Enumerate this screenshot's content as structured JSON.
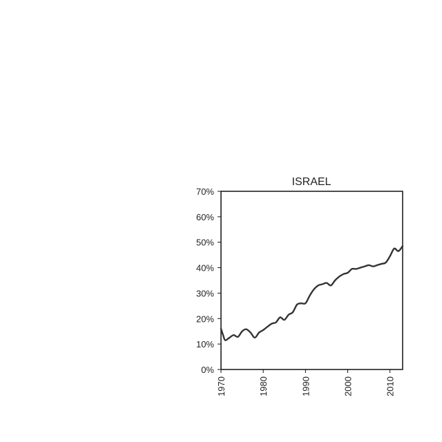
{
  "chart_data": {
    "type": "line",
    "title": "ISRAEL",
    "xlabel": "",
    "ylabel": "",
    "xlim": [
      1970,
      2013
    ],
    "ylim": [
      0,
      70
    ],
    "y_ticks": [
      0,
      10,
      20,
      30,
      40,
      50,
      60,
      70
    ],
    "y_tick_labels": [
      "0%",
      "10%",
      "20%",
      "30%",
      "40%",
      "50%",
      "60%",
      "70%"
    ],
    "x_ticks": [
      1970,
      1980,
      1990,
      2000,
      2010
    ],
    "x_tick_labels": [
      "1970",
      "1980",
      "1990",
      "2000",
      "2010"
    ],
    "grid": false,
    "series": [
      {
        "x": [
          1970,
          1970.5,
          1971,
          1972,
          1973,
          1974,
          1975,
          1976,
          1977,
          1978,
          1979,
          1980,
          1981,
          1982,
          1983,
          1984,
          1985,
          1986,
          1987,
          1988,
          1989,
          1990,
          1991,
          1992,
          1993,
          1994,
          1995,
          1996,
          1997,
          1998,
          1999,
          2000,
          2001,
          2002,
          2003,
          2004,
          2005,
          2006,
          2007,
          2008,
          2009,
          2010,
          2011,
          2012,
          2013
        ],
        "y": [
          16.0,
          13.5,
          11.5,
          12.5,
          13.5,
          12.8,
          15.0,
          15.8,
          14.5,
          12.5,
          14.5,
          15.5,
          16.8,
          18.0,
          18.5,
          20.5,
          19.5,
          21.5,
          22.5,
          25.5,
          26.0,
          26.0,
          29.0,
          31.5,
          33.0,
          33.5,
          34.0,
          33.0,
          35.0,
          36.5,
          37.5,
          38.0,
          39.5,
          39.5,
          40.0,
          40.5,
          41.0,
          40.5,
          41.0,
          41.5,
          42.0,
          44.5,
          47.5,
          46.5,
          48.5
        ]
      }
    ]
  }
}
